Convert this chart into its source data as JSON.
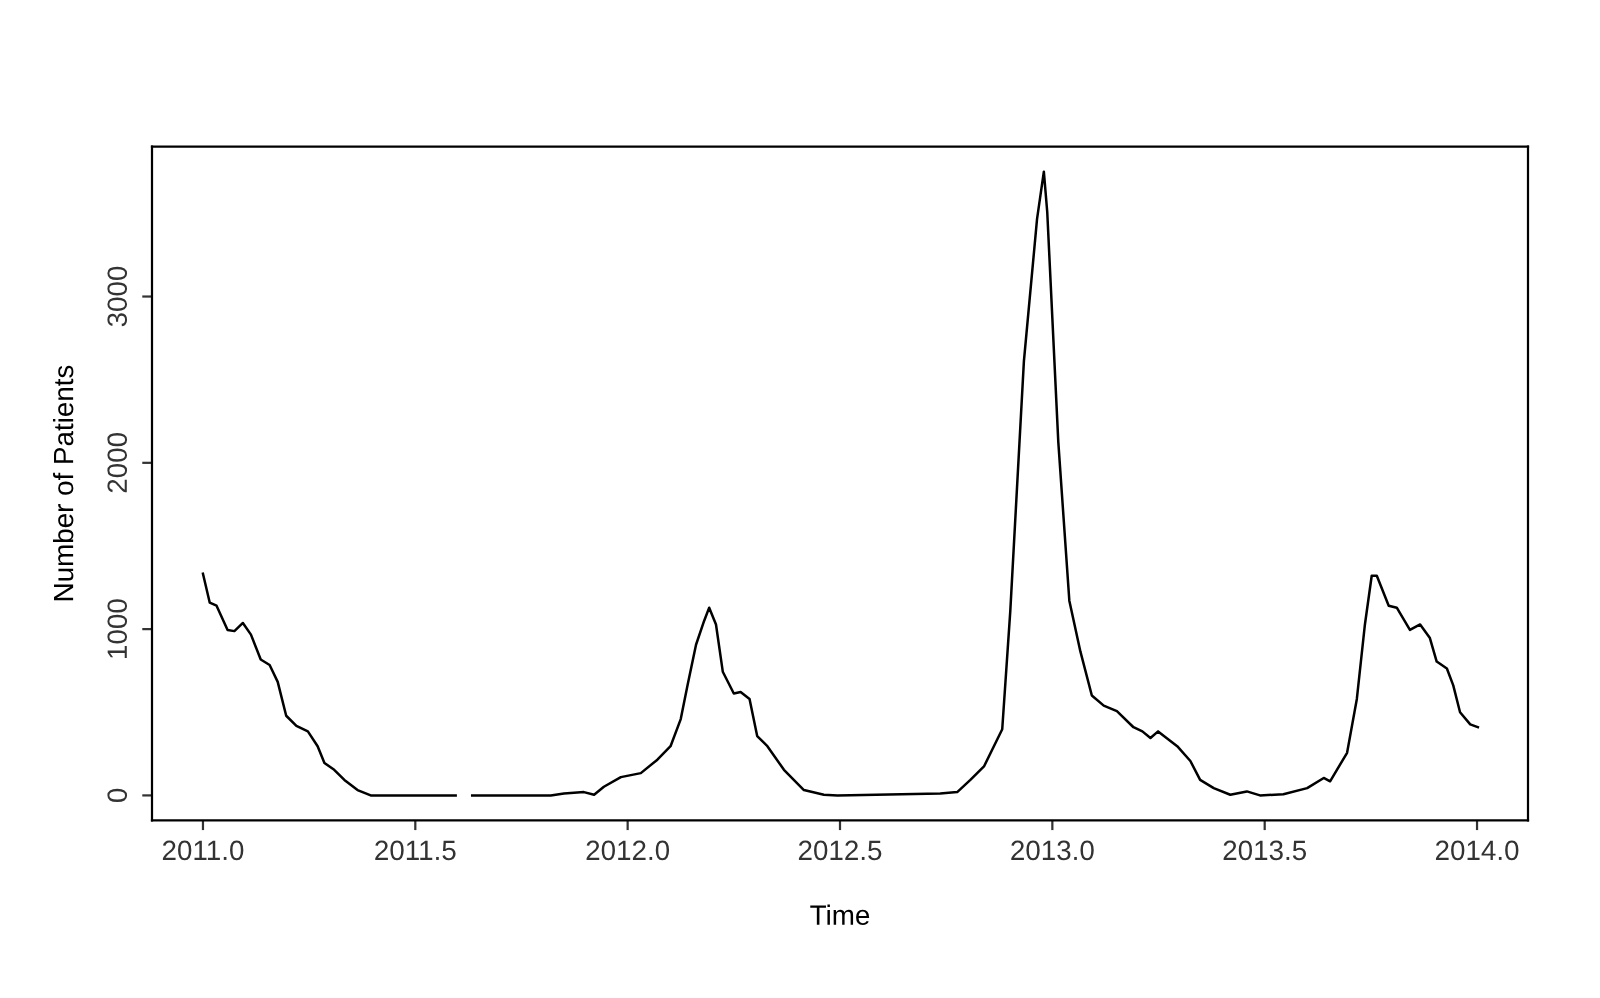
{
  "chart_data": {
    "type": "line",
    "xlabel": "Time",
    "ylabel": "Number of Patients",
    "x": [
      2011.0,
      2011.016,
      2011.032,
      2011.058,
      2011.074,
      2011.094,
      2011.113,
      2011.136,
      2011.157,
      2011.176,
      2011.196,
      2011.22,
      2011.247,
      2011.27,
      2011.286,
      2011.309,
      2011.333,
      2011.364,
      2011.395,
      2011.595,
      2011.615,
      2011.634,
      2011.819,
      2011.85,
      2011.897,
      2011.921,
      2011.944,
      2011.984,
      2012.031,
      2012.07,
      2012.101,
      2012.125,
      2012.141,
      2012.161,
      2012.18,
      2012.192,
      2012.208,
      2012.224,
      2012.25,
      2012.266,
      2012.287,
      2012.305,
      2012.329,
      2012.368,
      2012.415,
      2012.462,
      2012.494,
      2012.736,
      2012.776,
      2012.807,
      2012.839,
      2012.882,
      2012.901,
      2012.933,
      2012.964,
      2012.98,
      2012.988,
      2013.014,
      2013.04,
      2013.066,
      2013.093,
      2013.121,
      2013.152,
      2013.191,
      2013.212,
      2013.231,
      2013.249,
      2013.294,
      2013.325,
      2013.348,
      2013.38,
      2013.419,
      2013.458,
      2013.489,
      2013.544,
      2013.6,
      2013.639,
      2013.654,
      2013.694,
      2013.717,
      2013.736,
      2013.752,
      2013.764,
      2013.792,
      2013.811,
      2013.842,
      2013.866,
      2013.889,
      2013.905,
      2013.929,
      2013.944,
      2013.96,
      2013.984,
      2014.002
    ],
    "series": [
      {
        "color": "#000000",
        "values": [
          1333,
          1159,
          1141,
          995,
          988,
          1037,
          967,
          817,
          784,
          683,
          479,
          418,
          385,
          296,
          195,
          154,
          93,
          32,
          0,
          0,
          null,
          0,
          0,
          12,
          20,
          4,
          52,
          110,
          134,
          215,
          296,
          459,
          662,
          906,
          1049,
          1129,
          1028,
          744,
          613,
          622,
          580,
          357,
          296,
          154,
          32,
          4,
          0,
          12,
          20,
          93,
          174,
          398,
          1110,
          2610,
          3467,
          3751,
          3507,
          2126,
          1171,
          866,
          601,
          540,
          507,
          410,
          385,
          345,
          385,
          296,
          207,
          93,
          44,
          4,
          24,
          0,
          7,
          44,
          105,
          85,
          256,
          580,
          1028,
          1321,
          1321,
          1141,
          1129,
          995,
          1028,
          946,
          805,
          763,
          662,
          500,
          427,
          410
        ]
      }
    ],
    "xlim": [
      2010.88,
      2014.12
    ],
    "ylim": [
      -150,
      3901
    ],
    "xticks": [
      {
        "value": 2011,
        "label": "2011.0"
      },
      {
        "value": 2011.5,
        "label": "2011.5"
      },
      {
        "value": 2012,
        "label": "2012.0"
      },
      {
        "value": 2012.5,
        "label": "2012.5"
      },
      {
        "value": 2013,
        "label": "2013.0"
      },
      {
        "value": 2013.5,
        "label": "2013.5"
      },
      {
        "value": 2014,
        "label": "2014.0"
      }
    ],
    "yticks": [
      0,
      1000,
      2000,
      3000
    ],
    "grid": false,
    "legend": false,
    "marker": "none",
    "line_style": "solid"
  }
}
